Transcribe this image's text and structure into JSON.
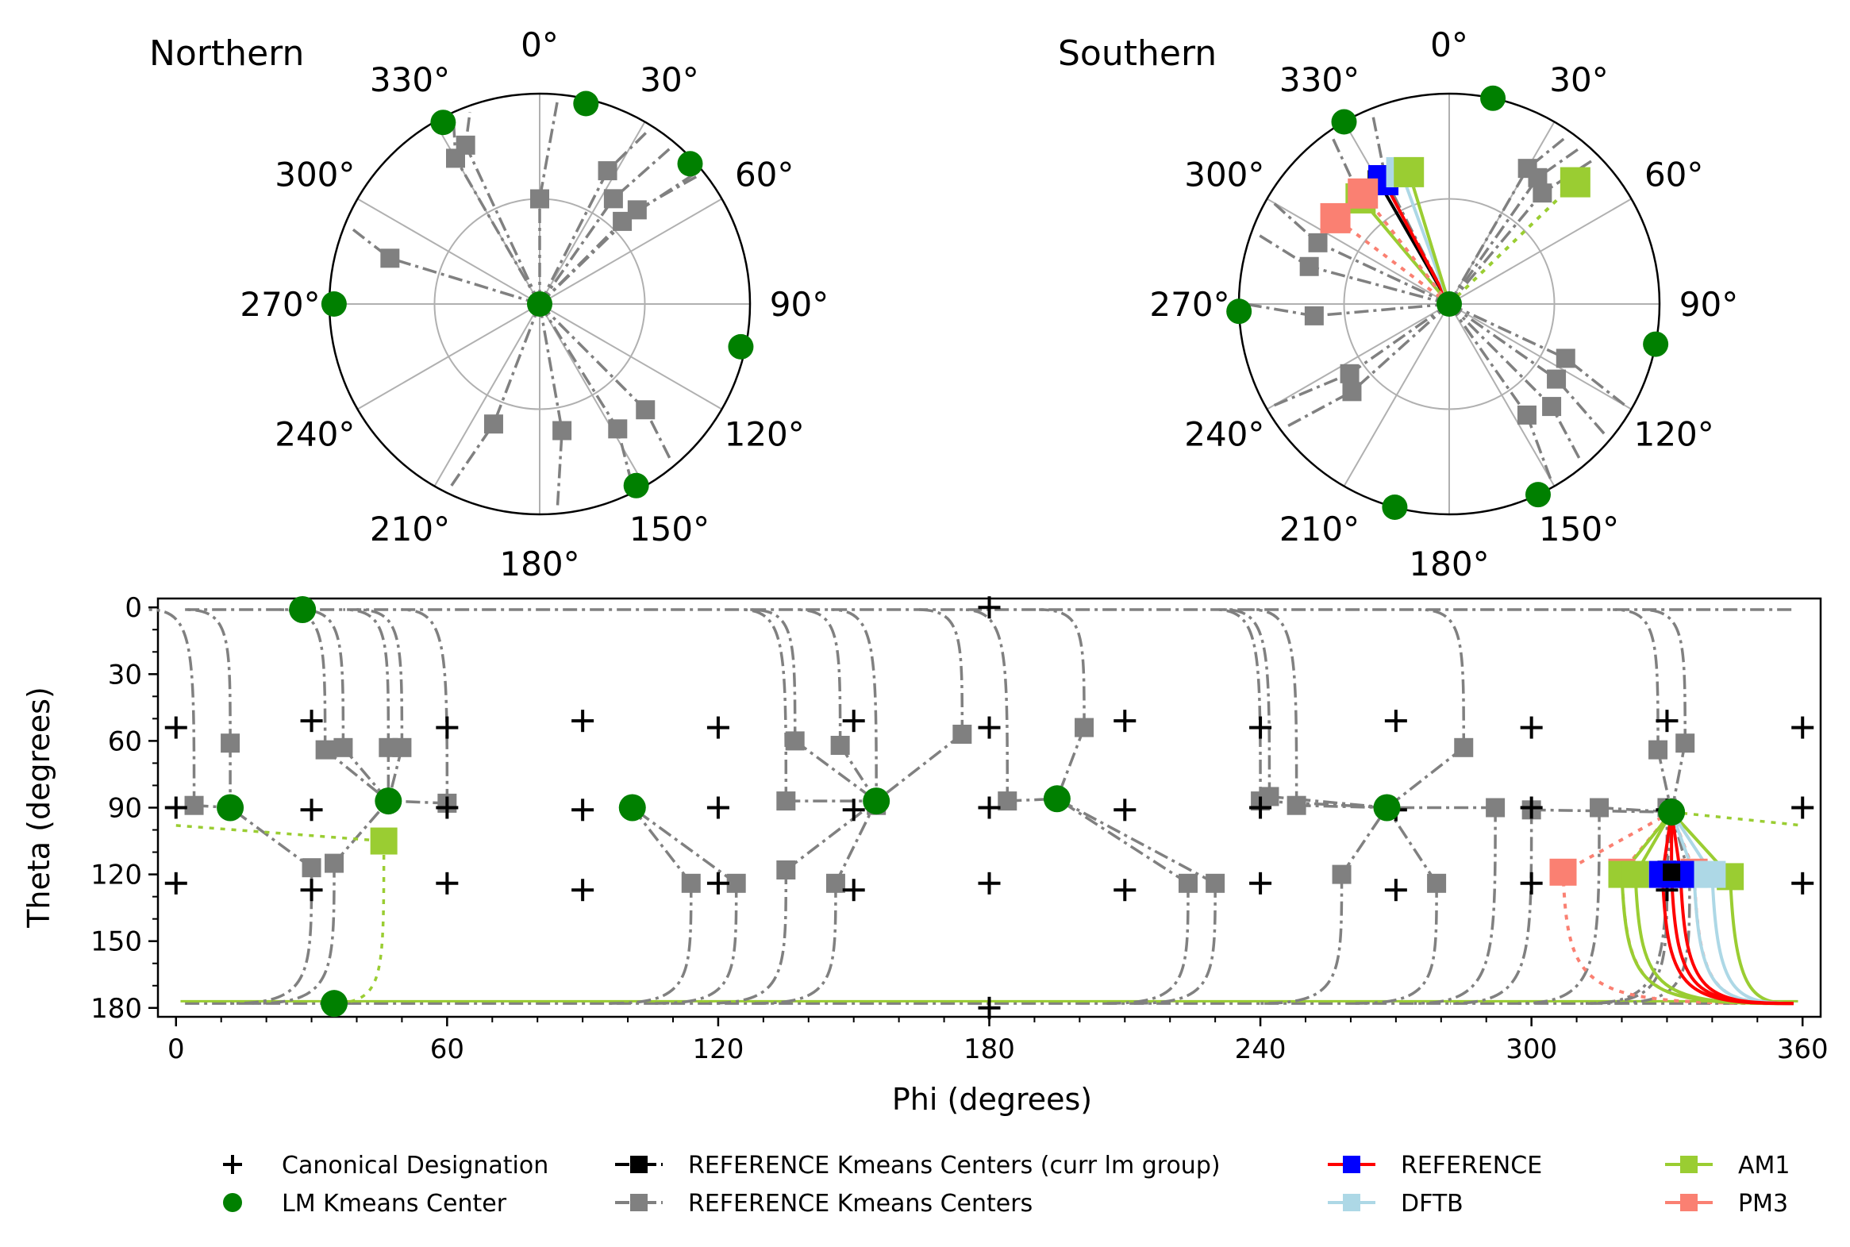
{
  "colors": {
    "canonical": "#000000",
    "lm_center": "#008000",
    "ref_centers": "#808080",
    "ref_curr": "#000000",
    "reference": "#ff0000",
    "reference_marker": "#0000ff",
    "dftb": "#add8e6",
    "am1": "#9acd32",
    "pm3": "#fa8072"
  },
  "chart_data": [
    {
      "type": "polar",
      "id": "northern",
      "label": "Northern",
      "angle_ticks": [
        "0°",
        "30°",
        "60°",
        "90°",
        "120°",
        "150°",
        "180°",
        "210°",
        "240°",
        "270°",
        "300°",
        "330°"
      ],
      "lm_centers": [
        {
          "phi": 0,
          "theta": 0
        },
        {
          "phi": 332,
          "theta": 88
        },
        {
          "phi": 13,
          "theta": 88
        },
        {
          "phi": 47,
          "theta": 88
        },
        {
          "phi": 270,
          "theta": 88
        },
        {
          "phi": 102,
          "theta": 88
        },
        {
          "phi": 152,
          "theta": 88
        }
      ],
      "ref_centers": [
        {
          "phi": 330,
          "theta": 72
        },
        {
          "phi": 335,
          "theta": 75
        },
        {
          "phi": 0,
          "theta": 45
        },
        {
          "phi": 27,
          "theta": 64
        },
        {
          "phi": 35,
          "theta": 55
        },
        {
          "phi": 46,
          "theta": 58
        },
        {
          "phi": 45,
          "theta": 50
        },
        {
          "phi": 287,
          "theta": 67
        },
        {
          "phi": 135,
          "theta": 64
        },
        {
          "phi": 148,
          "theta": 63
        },
        {
          "phi": 170,
          "theta": 55
        },
        {
          "phi": 201,
          "theta": 55
        }
      ]
    },
    {
      "type": "polar",
      "id": "southern",
      "label": "Southern",
      "angle_ticks": [
        "0°",
        "30°",
        "60°",
        "90°",
        "120°",
        "150°",
        "180°",
        "210°",
        "240°",
        "270°",
        "300°",
        "330°"
      ],
      "lm_centers": [
        {
          "phi": 0,
          "theta": 180
        },
        {
          "phi": 330,
          "theta": 90
        },
        {
          "phi": 12,
          "theta": 90
        },
        {
          "phi": 268,
          "theta": 90
        },
        {
          "phi": 101,
          "theta": 90
        },
        {
          "phi": 155,
          "theta": 90
        },
        {
          "phi": 195,
          "theta": 90
        }
      ],
      "ref_centers": [
        {
          "phi": 333,
          "theta": 120
        },
        {
          "phi": 320,
          "theta": 121
        },
        {
          "phi": 295,
          "theta": 118
        },
        {
          "phi": 285,
          "theta": 118
        },
        {
          "phi": 265,
          "theta": 122
        },
        {
          "phi": 235,
          "theta": 128
        },
        {
          "phi": 228,
          "theta": 124
        },
        {
          "phi": 125,
          "theta": 124
        },
        {
          "phi": 115,
          "theta": 125
        },
        {
          "phi": 135,
          "theta": 118
        },
        {
          "phi": 145,
          "theta": 122
        },
        {
          "phi": 35,
          "theta": 114
        },
        {
          "phi": 30,
          "theta": 113
        },
        {
          "phi": 40,
          "theta": 118
        }
      ],
      "curr_group": [
        {
          "phi": 330,
          "theta": 119,
          "series": "REFERENCE Kmeans Centers (curr lm group)"
        },
        {
          "phi": 332,
          "theta": 120,
          "series": "REFERENCE"
        },
        {
          "phi": 340,
          "theta": 120,
          "series": "DFTB"
        },
        {
          "phi": 343,
          "theta": 121,
          "series": "AM1"
        },
        {
          "phi": 320,
          "theta": 121,
          "series": "AM1"
        },
        {
          "phi": 46,
          "theta": 105,
          "series": "AM1"
        },
        {
          "phi": 307,
          "theta": 119,
          "series": "PM3"
        },
        {
          "phi": 322,
          "theta": 120,
          "series": "PM3"
        }
      ]
    },
    {
      "type": "scatter",
      "id": "theta-phi",
      "xlabel": "Phi (degrees)",
      "ylabel": "Theta (degrees)",
      "xlim": [
        -4,
        364
      ],
      "ylim": [
        184,
        -4
      ],
      "xticks": [
        "0",
        "60",
        "120",
        "180",
        "240",
        "300",
        "360"
      ],
      "yticks": [
        "0",
        "30",
        "60",
        "90",
        "120",
        "150",
        "180"
      ],
      "canonical": [
        [
          0,
          54
        ],
        [
          30,
          51
        ],
        [
          60,
          54
        ],
        [
          90,
          51
        ],
        [
          120,
          54
        ],
        [
          150,
          51
        ],
        [
          180,
          54
        ],
        [
          210,
          51
        ],
        [
          240,
          54
        ],
        [
          270,
          51
        ],
        [
          300,
          54
        ],
        [
          330,
          51
        ],
        [
          360,
          54
        ],
        [
          0,
          90
        ],
        [
          30,
          91
        ],
        [
          60,
          90
        ],
        [
          90,
          91
        ],
        [
          120,
          90
        ],
        [
          150,
          91
        ],
        [
          180,
          90
        ],
        [
          210,
          91
        ],
        [
          240,
          90
        ],
        [
          270,
          91
        ],
        [
          300,
          90
        ],
        [
          330,
          91
        ],
        [
          360,
          90
        ],
        [
          0,
          124
        ],
        [
          30,
          127
        ],
        [
          60,
          124
        ],
        [
          90,
          127
        ],
        [
          120,
          124
        ],
        [
          150,
          127
        ],
        [
          180,
          124
        ],
        [
          210,
          127
        ],
        [
          240,
          124
        ],
        [
          270,
          127
        ],
        [
          300,
          124
        ],
        [
          330,
          127
        ],
        [
          360,
          124
        ],
        [
          180,
          0
        ],
        [
          180,
          180
        ]
      ],
      "lm_centers": [
        [
          28,
          1
        ],
        [
          12,
          90
        ],
        [
          47,
          87
        ],
        [
          101,
          90
        ],
        [
          155,
          87
        ],
        [
          195,
          86
        ],
        [
          268,
          90
        ],
        [
          331,
          92
        ],
        [
          35,
          178
        ]
      ],
      "ref_centers": [
        [
          12,
          61
        ],
        [
          33,
          64
        ],
        [
          37,
          63
        ],
        [
          47,
          63
        ],
        [
          50,
          63
        ],
        [
          137,
          60
        ],
        [
          147,
          62
        ],
        [
          174,
          57
        ],
        [
          201,
          54
        ],
        [
          285,
          63
        ],
        [
          328,
          64
        ],
        [
          334,
          61
        ],
        [
          4,
          89
        ],
        [
          60,
          88
        ],
        [
          135,
          87
        ],
        [
          155,
          89
        ],
        [
          184,
          87
        ],
        [
          240,
          87
        ],
        [
          242,
          85
        ],
        [
          300,
          91
        ],
        [
          315,
          90
        ],
        [
          330,
          90
        ],
        [
          248,
          89
        ],
        [
          292,
          90
        ],
        [
          30,
          117
        ],
        [
          35,
          115
        ],
        [
          114,
          124
        ],
        [
          124,
          124
        ],
        [
          135,
          118
        ],
        [
          146,
          124
        ],
        [
          224,
          124
        ],
        [
          230,
          124
        ],
        [
          258,
          120
        ],
        [
          279,
          124
        ],
        [
          330,
          118
        ],
        [
          335,
          121
        ]
      ],
      "curr_center": [
        331,
        119
      ],
      "reference": [
        [
          329,
          120
        ],
        [
          331,
          120
        ],
        [
          333,
          120
        ]
      ],
      "dftb": [
        [
          336,
          120
        ],
        [
          340,
          120
        ]
      ],
      "am1": [
        [
          46,
          105
        ],
        [
          320,
          120
        ],
        [
          323,
          120
        ],
        [
          344,
          121
        ]
      ],
      "pm3": [
        [
          307,
          119
        ],
        [
          320,
          119
        ],
        [
          336,
          119
        ]
      ]
    }
  ],
  "legend": [
    {
      "label": "Canonical Designation",
      "marker": "plus",
      "color": "#000000"
    },
    {
      "label": "LM Kmeans Center",
      "marker": "circle",
      "color": "#008000"
    },
    {
      "label": "REFERENCE Kmeans Centers (curr lm group)",
      "marker": "square-line",
      "color": "#000000"
    },
    {
      "label": "REFERENCE Kmeans Centers",
      "marker": "square-line",
      "color": "#808080"
    },
    {
      "label": "REFERENCE",
      "marker": "square-line",
      "color": "#ff0000",
      "marker_color": "#0000ff"
    },
    {
      "label": "DFTB",
      "marker": "square-line",
      "color": "#add8e6"
    },
    {
      "label": "AM1",
      "marker": "square-line",
      "color": "#9acd32"
    },
    {
      "label": "PM3",
      "marker": "square-line",
      "color": "#fa8072"
    }
  ]
}
